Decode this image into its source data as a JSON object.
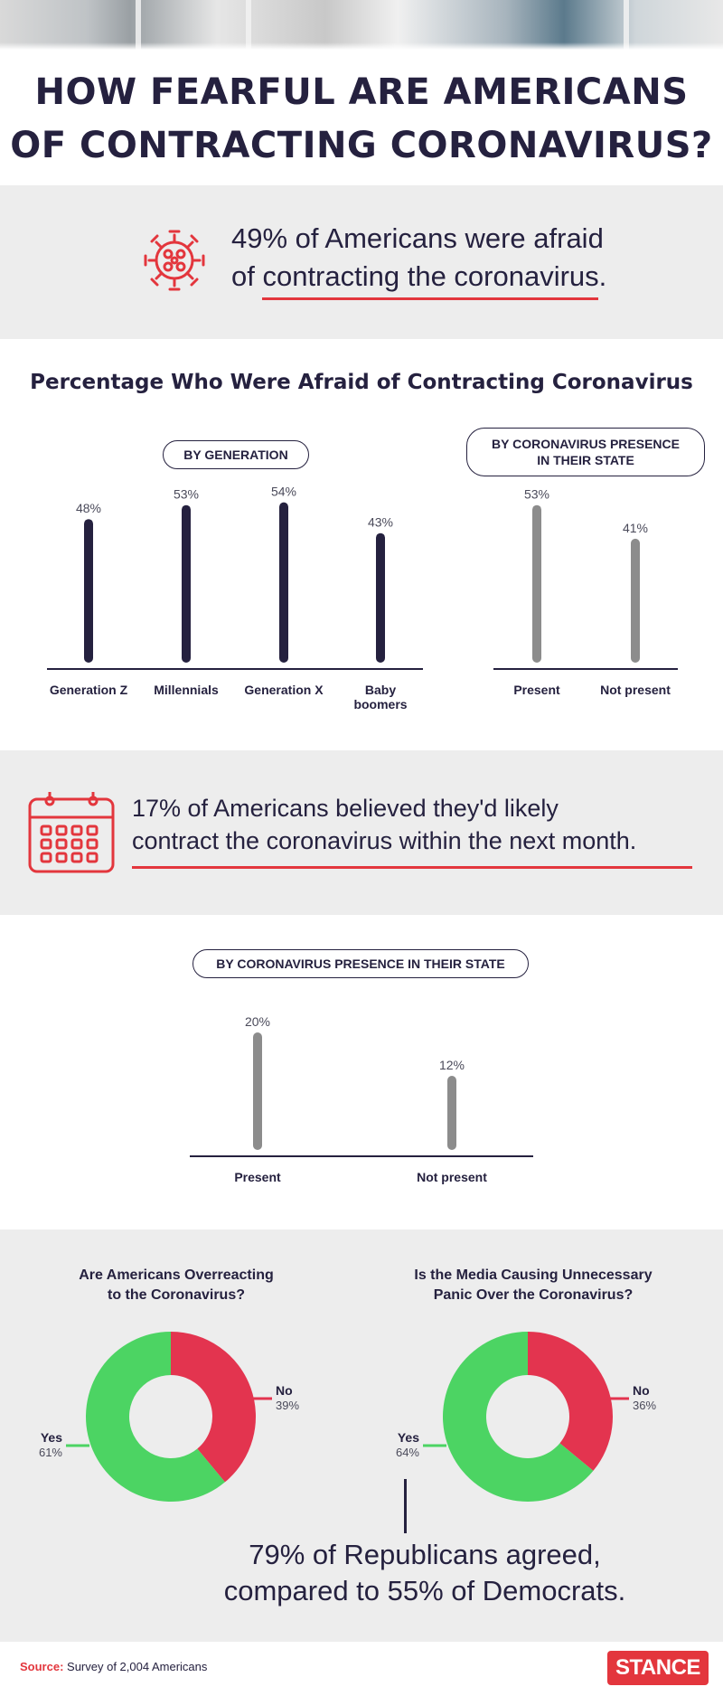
{
  "title": "HOW FEARFUL ARE AMERICANS OF CONTRACTING CORONAVIRUS?",
  "title_lines": [
    "HOW FEARFUL ARE AMERICANS",
    "OF CONTRACTING CORONAVIRUS?"
  ],
  "stat1": {
    "line1": "49% of Americans were afraid",
    "line2": "of contracting the coronavirus.",
    "icon": "virus-icon"
  },
  "section_title": "Percentage Who Were Afraid of Contracting Coronavirus",
  "stat2": {
    "line1": "17% of Americans believed they'd likely",
    "line2": "contract the coronavirus within the next month.",
    "icon": "calendar-icon"
  },
  "colors": {
    "navy": "#25213f",
    "grey_bar": "#8c8c8c",
    "red": "#e3363d",
    "green": "#4cd463",
    "crimson": "#e3344f",
    "panel_grey": "#ededed"
  },
  "chart_data": [
    {
      "type": "bar",
      "title": "BY GENERATION",
      "categories": [
        "Generation Z",
        "Millennials",
        "Generation X",
        "Baby boomers"
      ],
      "category_lines": [
        [
          "Generation Z"
        ],
        [
          "Millennials"
        ],
        [
          "Generation X"
        ],
        [
          "Baby",
          "boomers"
        ]
      ],
      "values": [
        48,
        53,
        54,
        43
      ],
      "value_labels": [
        "48%",
        "53%",
        "54%",
        "43%"
      ],
      "ylim": [
        0,
        60
      ],
      "color": "#25213f"
    },
    {
      "type": "bar",
      "title": "BY CORONAVIRUS PRESENCE IN THEIR STATE",
      "title_lines": [
        "BY CORONAVIRUS PRESENCE",
        "IN THEIR STATE"
      ],
      "categories": [
        "Present",
        "Not present"
      ],
      "values": [
        53,
        41
      ],
      "value_labels": [
        "53%",
        "41%"
      ],
      "ylim": [
        0,
        60
      ],
      "color": "#8c8c8c"
    },
    {
      "type": "bar",
      "title": "BY CORONAVIRUS PRESENCE IN THEIR STATE",
      "categories": [
        "Present",
        "Not present"
      ],
      "values": [
        20,
        12
      ],
      "value_labels": [
        "20%",
        "12%"
      ],
      "ylim": [
        0,
        22
      ],
      "color": "#8c8c8c"
    },
    {
      "type": "pie",
      "title": "Are Americans Overreacting to the Coronavirus?",
      "title_lines": [
        "Are Americans Overreacting",
        "to the Coronavirus?"
      ],
      "categories": [
        "No",
        "Yes"
      ],
      "values": [
        39,
        61
      ],
      "value_labels": [
        "39%",
        "61%"
      ],
      "colors": [
        "#e3344f",
        "#4cd463"
      ]
    },
    {
      "type": "pie",
      "title": "Is the Media Causing Unnecessary Panic Over the Coronavirus?",
      "title_lines": [
        "Is the Media Causing Unnecessary",
        "Panic Over the Coronavirus?"
      ],
      "categories": [
        "No",
        "Yes"
      ],
      "values": [
        36,
        64
      ],
      "value_labels": [
        "36%",
        "64%"
      ],
      "colors": [
        "#e3344f",
        "#4cd463"
      ]
    }
  ],
  "republicans_note": {
    "line1": "79% of Republicans agreed,",
    "line2": "compared to 55% of Democrats."
  },
  "footer": {
    "source_label": "Source:",
    "source_text": "Survey of 2,004 Americans",
    "brand": "STANCE"
  }
}
